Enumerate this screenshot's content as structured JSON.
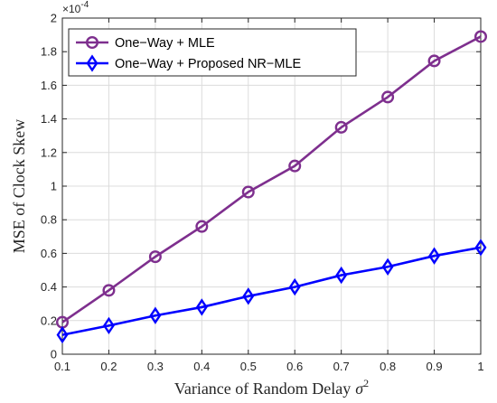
{
  "chart_data": {
    "type": "line",
    "title": "",
    "xlabel": "Variance of Random Delay",
    "xlabel_symbol": "σ",
    "xlabel_superscript": "2",
    "ylabel": "MSE of Clock Skew",
    "y_multiplier": "×10",
    "y_exponent": "-4",
    "x": [
      0.1,
      0.2,
      0.3,
      0.4,
      0.5,
      0.6,
      0.7,
      0.8,
      0.9,
      1
    ],
    "xlim": [
      0.1,
      1
    ],
    "ylim": [
      0,
      2
    ],
    "xticks": [
      "0.1",
      "0.2",
      "0.3",
      "0.4",
      "0.5",
      "0.6",
      "0.7",
      "0.8",
      "0.9",
      "1"
    ],
    "yticks": [
      "0",
      "0.2",
      "0.4",
      "0.6",
      "0.8",
      "1",
      "1.2",
      "1.4",
      "1.6",
      "1.8",
      "2"
    ],
    "grid": true,
    "legend_position": "top-left",
    "series": [
      {
        "name": "One−Way + MLE",
        "color": "#7E2F8E",
        "marker": "circle",
        "values": [
          0.19,
          0.38,
          0.58,
          0.76,
          0.965,
          1.12,
          1.35,
          1.53,
          1.745,
          1.89
        ]
      },
      {
        "name": "One−Way + Proposed NR−MLE",
        "color": "#0000FF",
        "marker": "diamond",
        "values": [
          0.115,
          0.17,
          0.23,
          0.28,
          0.345,
          0.4,
          0.47,
          0.52,
          0.585,
          0.635
        ]
      }
    ]
  }
}
